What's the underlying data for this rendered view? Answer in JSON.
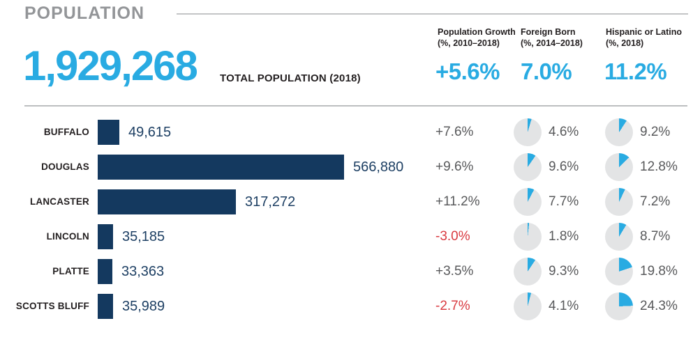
{
  "header": {
    "title": "POPULATION",
    "total_value": "1,929,268",
    "total_label": "TOTAL POPULATION (2018)"
  },
  "columns": [
    {
      "label": "Population Growth",
      "sublabel": "(%, 2010–2018)",
      "summary": "+5.6%"
    },
    {
      "label": "Foreign Born",
      "sublabel": "(%, 2014–2018)",
      "summary": "7.0%"
    },
    {
      "label": "Hispanic or Latino",
      "sublabel": "(%, 2018)",
      "summary": "11.2%"
    }
  ],
  "rows": [
    {
      "name": "BUFFALO",
      "population": 49615,
      "population_display": "49,615",
      "growth": 7.6,
      "growth_display": "+7.6%",
      "foreign_born": 4.6,
      "foreign_born_display": "4.6%",
      "hispanic": 9.2,
      "hispanic_display": "9.2%"
    },
    {
      "name": "DOUGLAS",
      "population": 566880,
      "population_display": "566,880",
      "growth": 9.6,
      "growth_display": "+9.6%",
      "foreign_born": 9.6,
      "foreign_born_display": "9.6%",
      "hispanic": 12.8,
      "hispanic_display": "12.8%"
    },
    {
      "name": "LANCASTER",
      "population": 317272,
      "population_display": "317,272",
      "growth": 11.2,
      "growth_display": "+11.2%",
      "foreign_born": 7.7,
      "foreign_born_display": "7.7%",
      "hispanic": 7.2,
      "hispanic_display": "7.2%"
    },
    {
      "name": "LINCOLN",
      "population": 35185,
      "population_display": "35,185",
      "growth": -3.0,
      "growth_display": "-3.0%",
      "foreign_born": 1.8,
      "foreign_born_display": "1.8%",
      "hispanic": 8.7,
      "hispanic_display": "8.7%"
    },
    {
      "name": "PLATTE",
      "population": 33363,
      "population_display": "33,363",
      "growth": 3.5,
      "growth_display": "+3.5%",
      "foreign_born": 9.3,
      "foreign_born_display": "9.3%",
      "hispanic": 19.8,
      "hispanic_display": "19.8%"
    },
    {
      "name": "SCOTTS BLUFF",
      "population": 35989,
      "population_display": "35,989",
      "growth": -2.7,
      "growth_display": "-2.7%",
      "foreign_born": 4.1,
      "foreign_born_display": "4.1%",
      "hispanic": 24.3,
      "hispanic_display": "24.3%"
    }
  ],
  "colors": {
    "accent_cyan": "#29abe2",
    "bar_navy": "#14395f",
    "negative_red": "#d93a40",
    "title_gray": "#939598",
    "pie_track_gray": "#e3e4e5",
    "body_text_gray": "#58595b"
  },
  "chart_data": {
    "type": "bar",
    "title": "POPULATION",
    "subtitle": "TOTAL POPULATION (2018): 1,929,268",
    "categories": [
      "Buffalo",
      "Douglas",
      "Lancaster",
      "Lincoln",
      "Platte",
      "Scotts Bluff"
    ],
    "series": [
      {
        "name": "Total Population (2018)",
        "values": [
          49615,
          566880,
          317272,
          35185,
          33363,
          35989
        ]
      },
      {
        "name": "Population Growth (%, 2010–2018)",
        "values": [
          7.6,
          9.6,
          11.2,
          -3.0,
          3.5,
          -2.7
        ]
      },
      {
        "name": "Foreign Born (%, 2014–2018)",
        "values": [
          4.6,
          9.6,
          7.7,
          1.8,
          9.3,
          4.1
        ]
      },
      {
        "name": "Hispanic or Latino (%, 2018)",
        "values": [
          9.2,
          12.8,
          7.2,
          8.7,
          19.8,
          24.3
        ]
      }
    ],
    "state_summary": {
      "total_population_2018": 1929268,
      "population_growth_pct": 5.6,
      "foreign_born_pct": 7.0,
      "hispanic_or_latino_pct": 11.2
    },
    "xlabel": "",
    "ylabel": "",
    "grid": false,
    "legend_position": "column-headers",
    "bar_orientation": "horizontal",
    "bar_xlim": [
      0,
      566880
    ]
  }
}
